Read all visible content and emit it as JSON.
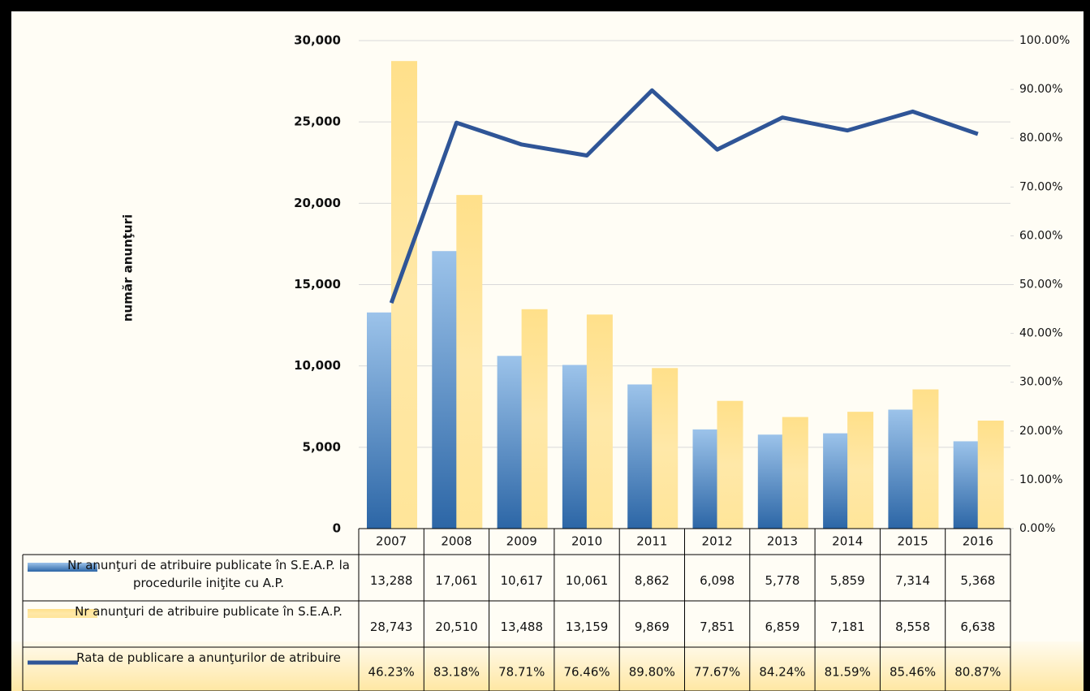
{
  "chart_data": {
    "type": "bar",
    "y_axis_label": "număr anunţuri",
    "categories": [
      "2007",
      "2008",
      "2009",
      "2010",
      "2011",
      "2012",
      "2013",
      "2014",
      "2015",
      "2016"
    ],
    "series": [
      {
        "name": "Nr anunţuri de atribuire publicate în S.E.A.P. la procedurile iniţite cu A.P.",
        "type": "bar",
        "color": "#3a78b8",
        "values": [
          13288,
          17061,
          10617,
          10061,
          8862,
          6098,
          5778,
          5859,
          7314,
          5368
        ],
        "value_labels": [
          "13,288",
          "17,061",
          "10,617",
          "10,061",
          "8,862",
          "6,098",
          "5,778",
          "5,859",
          "7,314",
          "5,368"
        ]
      },
      {
        "name": "Nr anunţuri de atribuire publicate în S.E.A.P.",
        "type": "bar",
        "color": "#ffe599",
        "values": [
          28743,
          20510,
          13488,
          13159,
          9869,
          7851,
          6859,
          7181,
          8558,
          6638
        ],
        "value_labels": [
          "28,743",
          "20,510",
          "13,488",
          "13,159",
          "9,869",
          "7,851",
          "6,859",
          "7,181",
          "8,558",
          "6,638"
        ]
      },
      {
        "name": "Rata de publicare a anunţurilor de atribuire",
        "type": "line",
        "axis": "y2",
        "color": "#2f5597",
        "values": [
          46.23,
          83.18,
          78.71,
          76.46,
          89.8,
          77.67,
          84.24,
          81.59,
          85.46,
          80.87
        ],
        "value_labels": [
          "46.23%",
          "83.18%",
          "78.71%",
          "76.46%",
          "89.80%",
          "77.67%",
          "84.24%",
          "81.59%",
          "85.46%",
          "80.87%"
        ]
      }
    ],
    "ylim": [
      0,
      30000
    ],
    "yticks": [
      0,
      {
        "value": 5000,
        "label": "5,000"
      },
      {
        "value": 10000,
        "label": "10,000"
      },
      {
        "value": 15000,
        "label": "15,000"
      },
      {
        "value": 20000,
        "label": "20,000"
      },
      {
        "value": 25000,
        "label": "25,000"
      },
      {
        "value": 30000,
        "label": "30,000"
      }
    ],
    "y2lim": [
      0,
      100
    ],
    "y2ticks": [
      {
        "value": 0,
        "label": "0.00%"
      },
      {
        "value": 10,
        "label": "10.00%"
      },
      {
        "value": 20,
        "label": "20.00%"
      },
      {
        "value": 30,
        "label": "30.00%"
      },
      {
        "value": 40,
        "label": "40.00%"
      },
      {
        "value": 50,
        "label": "50.00%"
      },
      {
        "value": 60,
        "label": "60.00%"
      },
      {
        "value": 70,
        "label": "70.00%"
      },
      {
        "value": 80,
        "label": "80.00%"
      },
      {
        "value": 90,
        "label": "90.00%"
      },
      {
        "value": 100,
        "label": "100.00%"
      }
    ],
    "grid": true
  }
}
